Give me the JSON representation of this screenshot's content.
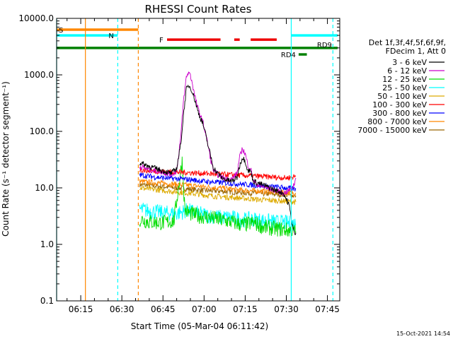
{
  "chart_data": {
    "type": "line",
    "title": "RHESSI Count Rates",
    "xlabel": "Start Time (05-Mar-04 06:11:42)",
    "ylabel": "Count Rate (s⁻¹ detector segment⁻¹)",
    "ylog": true,
    "ylim": [
      0.1,
      10000
    ],
    "xlim_minutes": [
      6.2,
      49.5
    ],
    "x_ticks": [
      {
        "label": "06:15",
        "min": 15
      },
      {
        "label": "06:30",
        "min": 30
      },
      {
        "label": "06:45",
        "min": 45
      },
      {
        "label": "07:00",
        "min": 60
      },
      {
        "label": "07:15",
        "min": 75
      },
      {
        "label": "07:30",
        "min": 90
      },
      {
        "label": "07:45",
        "min": 105
      }
    ],
    "y_ticks": [
      {
        "label": "0.1",
        "value": 0.1
      },
      {
        "label": "1.0",
        "value": 1
      },
      {
        "label": "10.0",
        "value": 10
      },
      {
        "label": "100.0",
        "value": 100
      },
      {
        "label": "1000.0",
        "value": 1000
      },
      {
        "label": "10000.0",
        "value": 10000
      }
    ],
    "legend": {
      "header": [
        "Det 1f,3f,4f,5f,6f,9f,",
        "FDecim 1, Att 0"
      ],
      "placement": "right",
      "entries": [
        {
          "label": "3 - 6 keV",
          "color": "#000000"
        },
        {
          "label": "6 - 12 keV",
          "color": "#cc00cc"
        },
        {
          "label": "12 - 25 keV",
          "color": "#00dd00"
        },
        {
          "label": "25 - 50 keV",
          "color": "#00ffff"
        },
        {
          "label": "50 - 100 keV",
          "color": "#ddaa00"
        },
        {
          "label": "100 - 300 keV",
          "color": "#ff0000"
        },
        {
          "label": "300 - 800 keV",
          "color": "#0000ff"
        },
        {
          "label": "800 - 7000 keV",
          "color": "#ff8800"
        },
        {
          "label": "7000 - 15000 keV",
          "color": "#996600"
        }
      ]
    },
    "series": [
      {
        "name": "3 - 6 keV",
        "color": "#000000",
        "points": [
          [
            36.5,
            28
          ],
          [
            40,
            24
          ],
          [
            45,
            20
          ],
          [
            48,
            18
          ],
          [
            50,
            22
          ],
          [
            51.5,
            60
          ],
          [
            52.5,
            200
          ],
          [
            53.5,
            550
          ],
          [
            54.5,
            650
          ],
          [
            55.5,
            540
          ],
          [
            56.5,
            380
          ],
          [
            57.5,
            250
          ],
          [
            58.5,
            180
          ],
          [
            59.5,
            140
          ],
          [
            60.5,
            90
          ],
          [
            61.5,
            55
          ],
          [
            62.5,
            35
          ],
          [
            63.5,
            22
          ],
          [
            65,
            18
          ],
          [
            66.5,
            15
          ],
          [
            68,
            14
          ],
          [
            70,
            13
          ],
          [
            72,
            15
          ],
          [
            73,
            25
          ],
          [
            74,
            35
          ],
          [
            75,
            30
          ],
          [
            76,
            20
          ],
          [
            77,
            20
          ],
          [
            78,
            13
          ],
          [
            80,
            12
          ],
          [
            82,
            11
          ],
          [
            84,
            10
          ],
          [
            86,
            9
          ],
          [
            88,
            8.5
          ],
          [
            89,
            8
          ],
          [
            91,
            5
          ],
          [
            92,
            2.5
          ],
          [
            93,
            1.5
          ],
          [
            93.5,
            1.6
          ]
        ]
      },
      {
        "name": "6 - 12 keV",
        "color": "#cc00cc",
        "points": [
          [
            36.5,
            24
          ],
          [
            40,
            21
          ],
          [
            45,
            19
          ],
          [
            48,
            17
          ],
          [
            50,
            20
          ],
          [
            51.5,
            80
          ],
          [
            52.5,
            350
          ],
          [
            53.5,
            900
          ],
          [
            54.5,
            1150
          ],
          [
            55.5,
            800
          ],
          [
            56.5,
            450
          ],
          [
            57.5,
            280
          ],
          [
            58.5,
            200
          ],
          [
            59.5,
            150
          ],
          [
            60.5,
            95
          ],
          [
            61.5,
            55
          ],
          [
            62.5,
            30
          ],
          [
            63.5,
            20
          ],
          [
            65,
            17
          ],
          [
            67,
            15
          ],
          [
            70,
            14
          ],
          [
            72,
            18
          ],
          [
            73,
            35
          ],
          [
            74,
            50
          ],
          [
            75,
            40
          ],
          [
            76,
            25
          ],
          [
            77,
            22
          ],
          [
            78,
            13
          ],
          [
            80,
            11
          ],
          [
            83,
            10
          ],
          [
            86,
            9
          ],
          [
            89,
            8
          ],
          [
            91,
            9
          ],
          [
            92,
            10
          ],
          [
            93,
            12
          ],
          [
            93.5,
            15
          ]
        ]
      },
      {
        "name": "12 - 25 keV",
        "color": "#00dd00",
        "points": [
          [
            36.5,
            2.8
          ],
          [
            40,
            2.5
          ],
          [
            45,
            2.4
          ],
          [
            49,
            2.6
          ],
          [
            52,
            30
          ],
          [
            53,
            4
          ],
          [
            55,
            3.5
          ],
          [
            58,
            3.2
          ],
          [
            62,
            3
          ],
          [
            66,
            2.7
          ],
          [
            70,
            2.5
          ],
          [
            74,
            2.2
          ],
          [
            78,
            2.4
          ],
          [
            82,
            2
          ],
          [
            86,
            1.9
          ],
          [
            90,
            1.8
          ],
          [
            93.5,
            1.7
          ]
        ]
      },
      {
        "name": "25 - 50 keV",
        "color": "#00ffff",
        "points": [
          [
            36.5,
            4.2
          ],
          [
            40,
            3.9
          ],
          [
            45,
            3.6
          ],
          [
            50,
            3.5
          ],
          [
            54,
            4
          ],
          [
            58,
            3.5
          ],
          [
            62,
            3.2
          ],
          [
            66,
            3
          ],
          [
            70,
            3
          ],
          [
            74,
            2.7
          ],
          [
            78,
            2.8
          ],
          [
            82,
            2.6
          ],
          [
            86,
            2.5
          ],
          [
            90,
            2.4
          ],
          [
            93.5,
            2.3
          ]
        ]
      },
      {
        "name": "50 - 100 keV",
        "color": "#ddaa00",
        "points": [
          [
            36.5,
            10
          ],
          [
            40,
            9.5
          ],
          [
            45,
            9
          ],
          [
            50,
            8.5
          ],
          [
            55,
            8
          ],
          [
            60,
            7.5
          ],
          [
            65,
            7
          ],
          [
            70,
            6.8
          ],
          [
            75,
            6.5
          ],
          [
            80,
            6.2
          ],
          [
            85,
            6
          ],
          [
            90,
            5.8
          ],
          [
            93.5,
            5.6
          ]
        ]
      },
      {
        "name": "100 - 300 keV",
        "color": "#ff0000",
        "points": [
          [
            36.5,
            21
          ],
          [
            40,
            20
          ],
          [
            45,
            19.5
          ],
          [
            50,
            19
          ],
          [
            55,
            18.5
          ],
          [
            60,
            18
          ],
          [
            65,
            17.5
          ],
          [
            70,
            17
          ],
          [
            75,
            16.5
          ],
          [
            80,
            16
          ],
          [
            85,
            15.5
          ],
          [
            90,
            15
          ],
          [
            93.5,
            16
          ]
        ]
      },
      {
        "name": "300 - 800 keV",
        "color": "#0000ff",
        "points": [
          [
            36.5,
            17
          ],
          [
            40,
            16
          ],
          [
            45,
            15
          ],
          [
            50,
            14.5
          ],
          [
            55,
            14
          ],
          [
            60,
            13
          ],
          [
            65,
            12.5
          ],
          [
            70,
            12
          ],
          [
            75,
            11.5
          ],
          [
            80,
            11
          ],
          [
            85,
            10.5
          ],
          [
            90,
            10
          ],
          [
            93.5,
            9.5
          ]
        ]
      },
      {
        "name": "800 - 7000 keV",
        "color": "#ff8800",
        "points": [
          [
            36.5,
            13
          ],
          [
            40,
            12.5
          ],
          [
            45,
            12
          ],
          [
            50,
            11.5
          ],
          [
            55,
            11
          ],
          [
            60,
            10.5
          ],
          [
            65,
            10
          ],
          [
            70,
            9.5
          ],
          [
            75,
            9
          ],
          [
            80,
            8.8
          ],
          [
            85,
            8.5
          ],
          [
            90,
            8.2
          ],
          [
            93.5,
            8
          ]
        ]
      },
      {
        "name": "7000 - 15000 keV",
        "color": "#996600",
        "points": [
          [
            36.5,
            11.5
          ],
          [
            40,
            11
          ],
          [
            45,
            10.5
          ],
          [
            50,
            10
          ],
          [
            55,
            9.5
          ],
          [
            60,
            9
          ],
          [
            65,
            8.8
          ],
          [
            70,
            8.5
          ],
          [
            75,
            8.2
          ],
          [
            80,
            8
          ],
          [
            85,
            7.8
          ],
          [
            90,
            7.5
          ],
          [
            93.5,
            7.2
          ]
        ]
      }
    ],
    "vlines": [
      {
        "min": 6.2,
        "color": "#00ffff",
        "dashed": false
      },
      {
        "min": 16.7,
        "color": "#ff8800",
        "dashed": false
      },
      {
        "min": 28.5,
        "color": "#00ffff",
        "dashed": true
      },
      {
        "min": 36,
        "color": "#ff8800",
        "dashed": true
      },
      {
        "min": 91.8,
        "color": "#00ffff",
        "dashed": false
      },
      {
        "min": 107,
        "color": "#00ffff",
        "dashed": true
      }
    ],
    "bars": [
      {
        "label": "S",
        "color": "#ff8800",
        "from": 6.2,
        "to": 36,
        "value": 6300
      },
      {
        "label": "N",
        "color": "#00ffff",
        "from": 6.2,
        "to": 28.5,
        "value": 5000
      },
      {
        "label": "F",
        "color": "#ee0000",
        "segments": [
          [
            46.5,
            66
          ],
          [
            71,
            73
          ],
          [
            77,
            86.5
          ]
        ],
        "value": 4200
      },
      {
        "label": "RD9",
        "color": "#008000",
        "from": 6.2,
        "to": 108.7,
        "value": 3000
      },
      {
        "label": "RD4",
        "color": "#008000",
        "from": 94.5,
        "to": 97.5,
        "value": 2300
      },
      {
        "label": "",
        "color": "#00ffff",
        "from": 91.8,
        "to": 108.7,
        "value": 5000
      }
    ]
  },
  "footer": {
    "timestamp": "15-Oct-2021 14:54"
  }
}
